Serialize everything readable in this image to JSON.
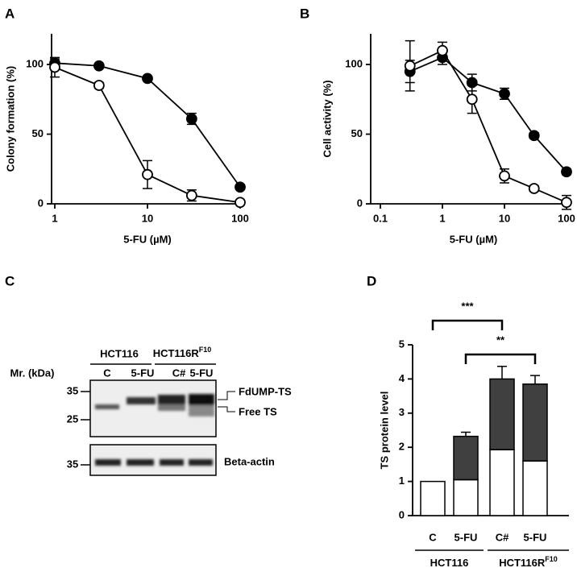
{
  "chart_data": [
    {
      "type": "line",
      "panel_label": "A",
      "xlabel": "5-FU (µM)",
      "ylabel": "Colony formation (%)",
      "log_x": true,
      "x": [
        1,
        3,
        10,
        30,
        100
      ],
      "xlim": [
        1,
        100
      ],
      "xticks": [
        1,
        10,
        100
      ],
      "ylim": [
        0,
        122
      ],
      "yticks": [
        0,
        50,
        100
      ],
      "series": [
        {
          "color": "#000000",
          "marker_fill": "#000000",
          "values": [
            101,
            99,
            90,
            61,
            12
          ],
          "errors": [
            3,
            1,
            1,
            4,
            1
          ]
        },
        {
          "color": "#000000",
          "marker_fill": "#ffffff",
          "values": [
            98,
            85,
            21,
            6,
            1
          ],
          "errors": [
            7,
            2,
            10,
            4,
            1
          ]
        }
      ]
    },
    {
      "type": "line",
      "panel_label": "B",
      "xlabel": "5-FU (µM)",
      "ylabel": "Cell activity (%)",
      "log_x": true,
      "x": [
        0.3,
        1,
        3,
        10,
        30,
        100
      ],
      "xlim": [
        0.1,
        100
      ],
      "xticks": [
        0.1,
        1,
        10,
        100
      ],
      "ylim": [
        0,
        122
      ],
      "yticks": [
        0,
        50,
        100
      ],
      "series": [
        {
          "color": "#000000",
          "marker_fill": "#000000",
          "values": [
            95,
            105,
            87,
            79,
            49,
            23
          ],
          "errors": [
            8,
            5,
            6,
            4,
            2,
            2
          ]
        },
        {
          "color": "#000000",
          "marker_fill": "#ffffff",
          "values": [
            99,
            110,
            75,
            20,
            11,
            1
          ],
          "errors": [
            18,
            6,
            10,
            5,
            2,
            5
          ]
        }
      ]
    },
    {
      "type": "stacked_bar",
      "panel_label": "D",
      "ylabel": "TS protein level",
      "categories": [
        "C",
        "5-FU",
        "C#",
        "5-FU"
      ],
      "ylim": [
        0,
        5
      ],
      "yticks": [
        0,
        1,
        2,
        3,
        4,
        5
      ],
      "groups": [
        {
          "label": "HCT116"
        },
        {
          "label": "HCT116R",
          "sup": "F10"
        }
      ],
      "annotations": [
        "***",
        "**"
      ],
      "series": [
        {
          "color": "#ffffff",
          "values": [
            1,
            1.05,
            1.93,
            1.6
          ],
          "errors": [
            0,
            0.25,
            0.27,
            0.1
          ]
        },
        {
          "color": "#404040",
          "values": [
            0,
            1.27,
            2.07,
            2.25
          ],
          "errors": [
            0,
            0.12,
            0.37,
            0.25
          ]
        }
      ]
    }
  ],
  "blot": {
    "panel_label": "C",
    "marker_title": "Mr. (kDa)",
    "markers": [
      "35",
      "25",
      "35"
    ],
    "groups": [
      {
        "label": "HCT116"
      },
      {
        "label": "HCT116R",
        "sup": "F10"
      }
    ],
    "lanes": [
      "C",
      "5-FU",
      "C#",
      "5-FU"
    ],
    "band_labels": [
      "FdUMP-TS",
      "Free TS",
      "Beta-actin"
    ]
  }
}
